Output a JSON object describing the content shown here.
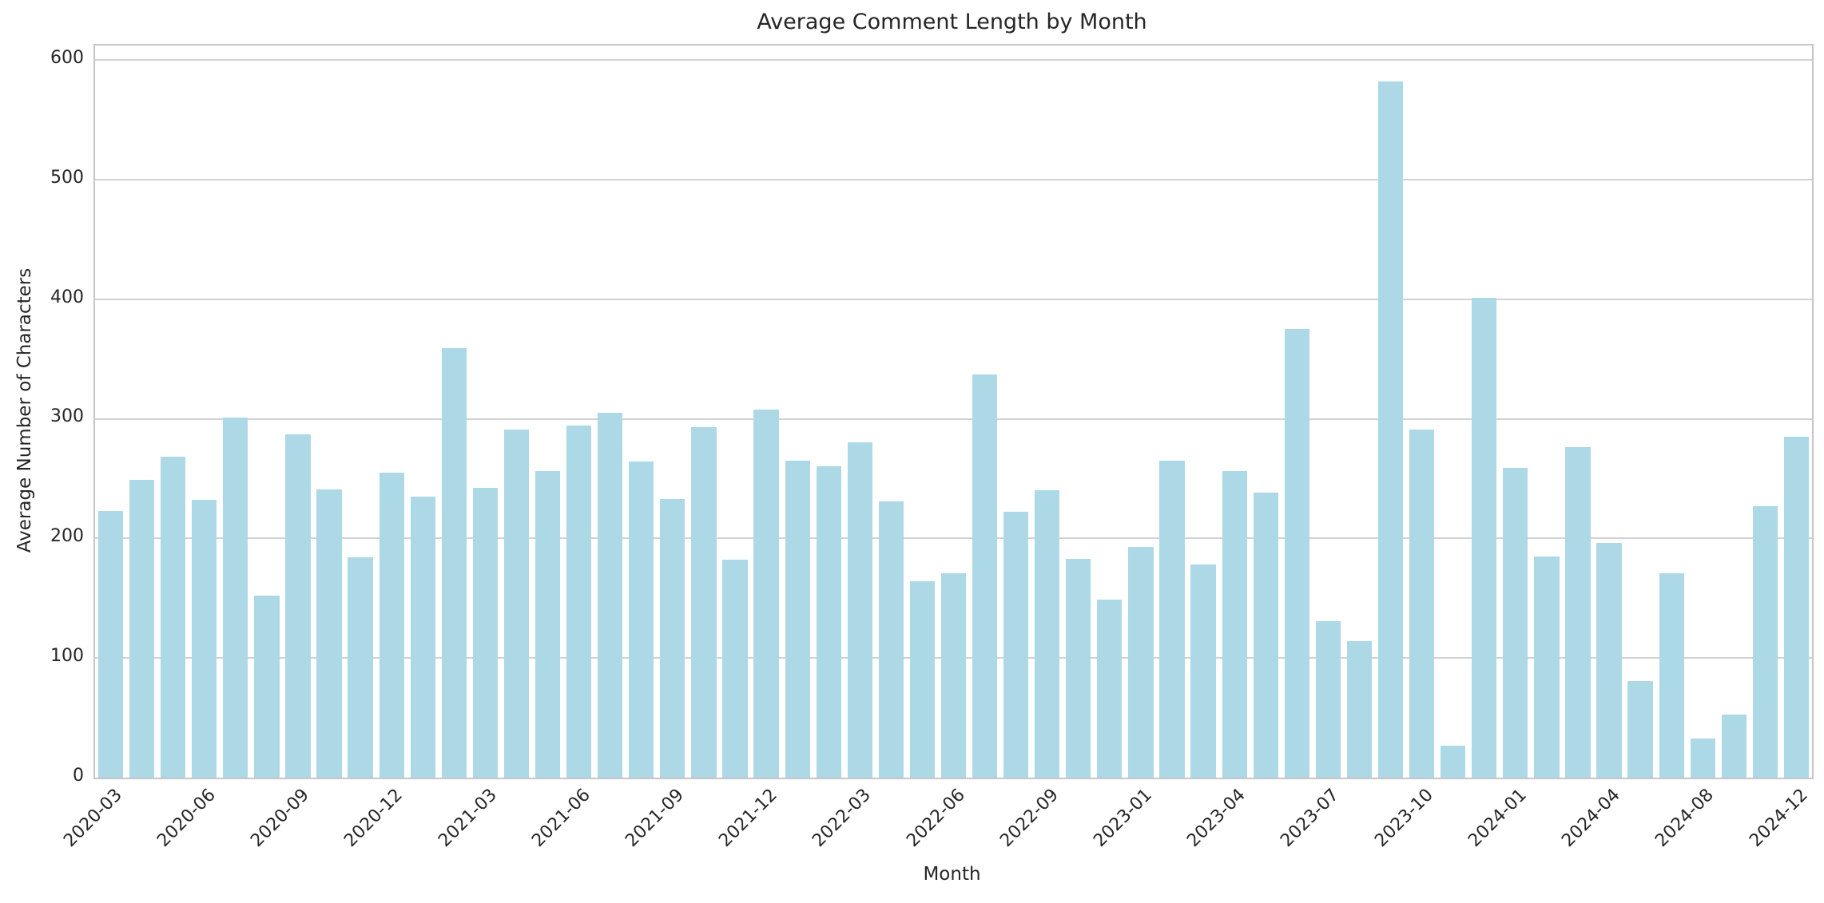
{
  "chart_data": {
    "type": "bar",
    "title": "Average Comment Length by Month",
    "xlabel": "Month",
    "ylabel": "Average Number of Characters",
    "categories": [
      "2020-03",
      "2020-04",
      "2020-05",
      "2020-06",
      "2020-07",
      "2020-08",
      "2020-09",
      "2020-10",
      "2020-11",
      "2020-12",
      "2021-01",
      "2021-02",
      "2021-03",
      "2021-04",
      "2021-05",
      "2021-06",
      "2021-07",
      "2021-08",
      "2021-09",
      "2021-10",
      "2021-11",
      "2021-12",
      "2022-01",
      "2022-02",
      "2022-03",
      "2022-04",
      "2022-05",
      "2022-06",
      "2022-07",
      "2022-08",
      "2022-09",
      "2022-10",
      "2022-11",
      "2023-01",
      "2023-02",
      "2023-03",
      "2023-04",
      "2023-05",
      "2023-06",
      "2023-07",
      "2023-08",
      "2023-09",
      "2023-10",
      "2023-11",
      "2023-12",
      "2024-01",
      "2024-02",
      "2024-03",
      "2024-04",
      "2024-05",
      "2024-06",
      "2024-08",
      "2024-09",
      "2024-10",
      "2024-12"
    ],
    "values": [
      223,
      249,
      268,
      232,
      301,
      152,
      287,
      241,
      184,
      255,
      235,
      359,
      242,
      291,
      256,
      294,
      305,
      264,
      233,
      293,
      182,
      308,
      265,
      260,
      280,
      231,
      164,
      171,
      337,
      222,
      240,
      183,
      149,
      193,
      265,
      178,
      256,
      238,
      375,
      131,
      114,
      582,
      291,
      27,
      401,
      259,
      185,
      276,
      196,
      81,
      171,
      33,
      53,
      227,
      285
    ],
    "x_tick_labels": [
      "2020-03",
      "2020-06",
      "2020-09",
      "2020-12",
      "2021-03",
      "2021-06",
      "2021-09",
      "2021-12",
      "2022-03",
      "2022-06",
      "2022-09",
      "2023-01",
      "2023-04",
      "2023-07",
      "2023-10",
      "2024-01",
      "2024-04",
      "2024-08",
      "2024-12"
    ],
    "x_tick_every": 3,
    "yticks": [
      0,
      100,
      200,
      300,
      400,
      500,
      600
    ],
    "ylim": [
      0,
      612
    ],
    "grid": "horizontal",
    "legend_position": "none",
    "bar_color": "#ADD8E6",
    "grid_color": "#D2D2D2",
    "spine_color": "#C6C6C6",
    "text_color": "#262626",
    "background_color": "#FFFFFF"
  }
}
